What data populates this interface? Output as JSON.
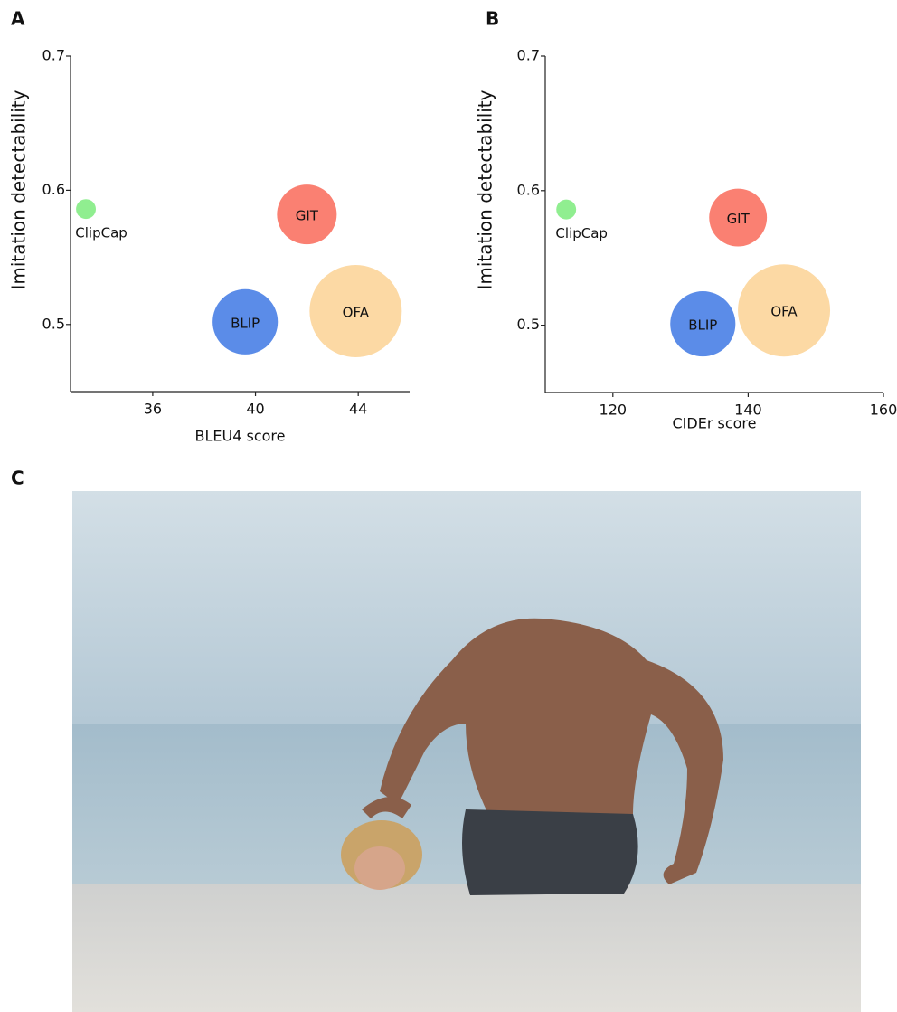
{
  "panel_c": "C",
  "chart_data": [
    {
      "type": "bubble",
      "panel": "A",
      "x_label": "BLEU4 score",
      "y_label": "Imitation detectability",
      "xlim": [
        32.8,
        46
      ],
      "xticks": [
        36,
        40,
        44
      ],
      "ylim": [
        0.45,
        0.7
      ],
      "yticks": [
        0.5,
        0.6,
        0.7
      ],
      "series": [
        {
          "name": "ClipCap",
          "color": "#90ee90",
          "x": [
            33.4
          ],
          "values": [
            0.586
          ],
          "sizes": [
            1.2
          ]
        },
        {
          "name": "GIT",
          "color": "#fa8072",
          "x": [
            42.0
          ],
          "values": [
            0.582
          ],
          "sizes": [
            10.9
          ]
        },
        {
          "name": "BLIP",
          "color": "#5b8ce8",
          "x": [
            39.6
          ],
          "values": [
            0.502
          ],
          "sizes": [
            13
          ]
        },
        {
          "name": "OFA",
          "color": "#fcd9a4",
          "x": [
            43.9
          ],
          "values": [
            0.51
          ],
          "sizes": [
            26
          ]
        }
      ]
    },
    {
      "type": "bubble",
      "panel": "B",
      "x_label": "CIDEr score",
      "y_label": "Imitation detectability",
      "xlim": [
        110,
        160
      ],
      "xticks": [
        120,
        140,
        160
      ],
      "ylim": [
        0.45,
        0.7
      ],
      "yticks": [
        0.5,
        0.6,
        0.7
      ],
      "series": [
        {
          "name": "ClipCap",
          "color": "#90ee90",
          "x": [
            113.1
          ],
          "values": [
            0.586
          ],
          "sizes": [
            1.2
          ]
        },
        {
          "name": "GIT",
          "color": "#fa8072",
          "x": [
            138.5
          ],
          "values": [
            0.58
          ],
          "sizes": [
            10.2
          ]
        },
        {
          "name": "BLIP",
          "color": "#5b8ce8",
          "x": [
            133.3
          ],
          "values": [
            0.501
          ],
          "sizes": [
            13
          ]
        },
        {
          "name": "OFA",
          "color": "#fcd9a4",
          "x": [
            145.3
          ],
          "values": [
            0.511
          ],
          "sizes": [
            26
          ]
        }
      ]
    }
  ]
}
